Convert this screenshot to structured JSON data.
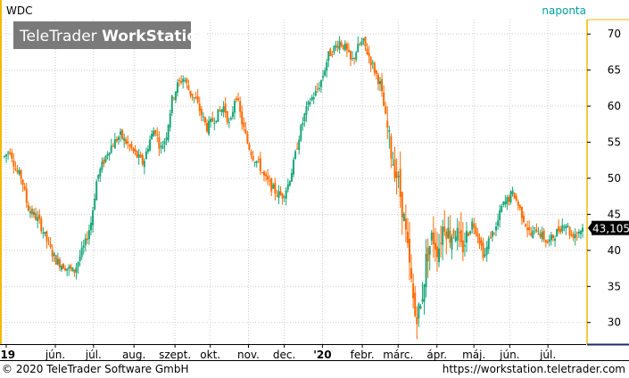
{
  "symbol": "WDC",
  "interval": "naponta",
  "watermark": {
    "part1": "TeleTrader ",
    "part2": "WorkStation"
  },
  "footer": {
    "copyright": "© 2020 TeleTrader Software GmbH",
    "url": "https://workstation.teletrader.com"
  },
  "colors": {
    "up": "#1aa77a",
    "down": "#ff6a00",
    "accent": "#00a0a0",
    "axis_line": "#f5b800",
    "grid": "#cccccc"
  },
  "chart_data": {
    "type": "candlestick",
    "ylim": [
      27,
      72
    ],
    "yticks": [
      30,
      35,
      40,
      45,
      50,
      55,
      60,
      65,
      70
    ],
    "ytick_labels": [
      "30",
      "35",
      "40",
      "45",
      "50",
      "55",
      "60",
      "65",
      "70"
    ],
    "last_price_label": "43,105",
    "last_price": 43.105,
    "x_domain": [
      0,
      100
    ],
    "xticks": [
      {
        "pos": 0.3,
        "label": "'19",
        "bold": true
      },
      {
        "pos": 8.8,
        "label": "jún.",
        "bold": false
      },
      {
        "pos": 15.4,
        "label": "júl.",
        "bold": false
      },
      {
        "pos": 22.4,
        "label": "aug.",
        "bold": false
      },
      {
        "pos": 29.5,
        "label": "szept.",
        "bold": false
      },
      {
        "pos": 35.6,
        "label": "okt.",
        "bold": false
      },
      {
        "pos": 42.2,
        "label": "nov.",
        "bold": false
      },
      {
        "pos": 48.4,
        "label": "dec.",
        "bold": false
      },
      {
        "pos": 55.0,
        "label": "'20",
        "bold": true
      },
      {
        "pos": 61.9,
        "label": "febr.",
        "bold": false
      },
      {
        "pos": 68.1,
        "label": "márc.",
        "bold": false
      },
      {
        "pos": 74.8,
        "label": "ápr.",
        "bold": false
      },
      {
        "pos": 81.2,
        "label": "máj.",
        "bold": false
      },
      {
        "pos": 87.4,
        "label": "jún.",
        "bold": false
      },
      {
        "pos": 94.0,
        "label": "júl.",
        "bold": false
      }
    ],
    "price_path": [
      [
        0,
        53
      ],
      [
        1,
        54
      ],
      [
        2,
        51
      ],
      [
        3,
        50
      ],
      [
        4,
        46
      ],
      [
        5,
        45
      ],
      [
        6,
        44
      ],
      [
        7,
        42
      ],
      [
        8,
        40
      ],
      [
        9,
        38.5
      ],
      [
        10,
        38
      ],
      [
        11,
        37.5
      ],
      [
        12,
        37
      ],
      [
        13,
        39
      ],
      [
        14,
        41
      ],
      [
        15,
        44
      ],
      [
        16,
        50
      ],
      [
        17,
        52
      ],
      [
        18,
        54
      ],
      [
        19,
        55
      ],
      [
        20,
        56
      ],
      [
        21,
        55
      ],
      [
        22,
        54
      ],
      [
        23,
        53
      ],
      [
        24,
        52
      ],
      [
        25,
        55
      ],
      [
        26,
        57
      ],
      [
        27,
        54
      ],
      [
        28,
        56
      ],
      [
        29,
        61
      ],
      [
        30,
        63
      ],
      [
        31,
        64
      ],
      [
        32,
        62
      ],
      [
        33,
        61
      ],
      [
        34,
        59
      ],
      [
        35,
        57
      ],
      [
        36,
        58
      ],
      [
        37,
        59
      ],
      [
        38,
        60
      ],
      [
        39,
        57
      ],
      [
        40,
        62
      ],
      [
        41,
        58
      ],
      [
        42,
        55
      ],
      [
        43,
        53
      ],
      [
        44,
        52
      ],
      [
        45,
        50
      ],
      [
        46,
        49
      ],
      [
        47,
        48
      ],
      [
        48,
        47.5
      ],
      [
        49,
        49
      ],
      [
        50,
        52
      ],
      [
        51,
        56
      ],
      [
        52,
        59
      ],
      [
        53,
        61
      ],
      [
        54,
        62
      ],
      [
        55,
        64
      ],
      [
        56,
        67
      ],
      [
        57,
        68
      ],
      [
        58,
        69
      ],
      [
        59,
        68
      ],
      [
        60,
        66
      ],
      [
        61,
        68
      ],
      [
        62,
        69
      ],
      [
        63,
        67
      ],
      [
        64,
        65
      ],
      [
        65,
        63
      ],
      [
        66,
        58
      ],
      [
        67,
        53
      ],
      [
        68,
        50
      ],
      [
        69,
        45
      ],
      [
        70,
        38
      ],
      [
        71,
        31
      ],
      [
        72,
        32
      ],
      [
        73,
        39
      ],
      [
        74,
        42
      ],
      [
        75,
        40
      ],
      [
        76,
        44
      ],
      [
        77,
        42
      ],
      [
        78,
        43
      ],
      [
        79,
        40
      ],
      [
        80,
        42
      ],
      [
        81,
        44
      ],
      [
        82,
        42
      ],
      [
        83,
        39
      ],
      [
        84,
        42
      ],
      [
        85,
        43
      ],
      [
        86,
        46
      ],
      [
        87,
        47
      ],
      [
        88,
        48
      ],
      [
        89,
        46
      ],
      [
        90,
        44
      ],
      [
        91,
        42
      ],
      [
        92,
        43
      ],
      [
        93,
        42
      ],
      [
        94,
        41
      ],
      [
        95,
        42
      ],
      [
        96,
        43
      ],
      [
        97,
        44
      ],
      [
        98,
        42
      ],
      [
        99,
        42.5
      ],
      [
        100,
        43.1
      ]
    ]
  }
}
